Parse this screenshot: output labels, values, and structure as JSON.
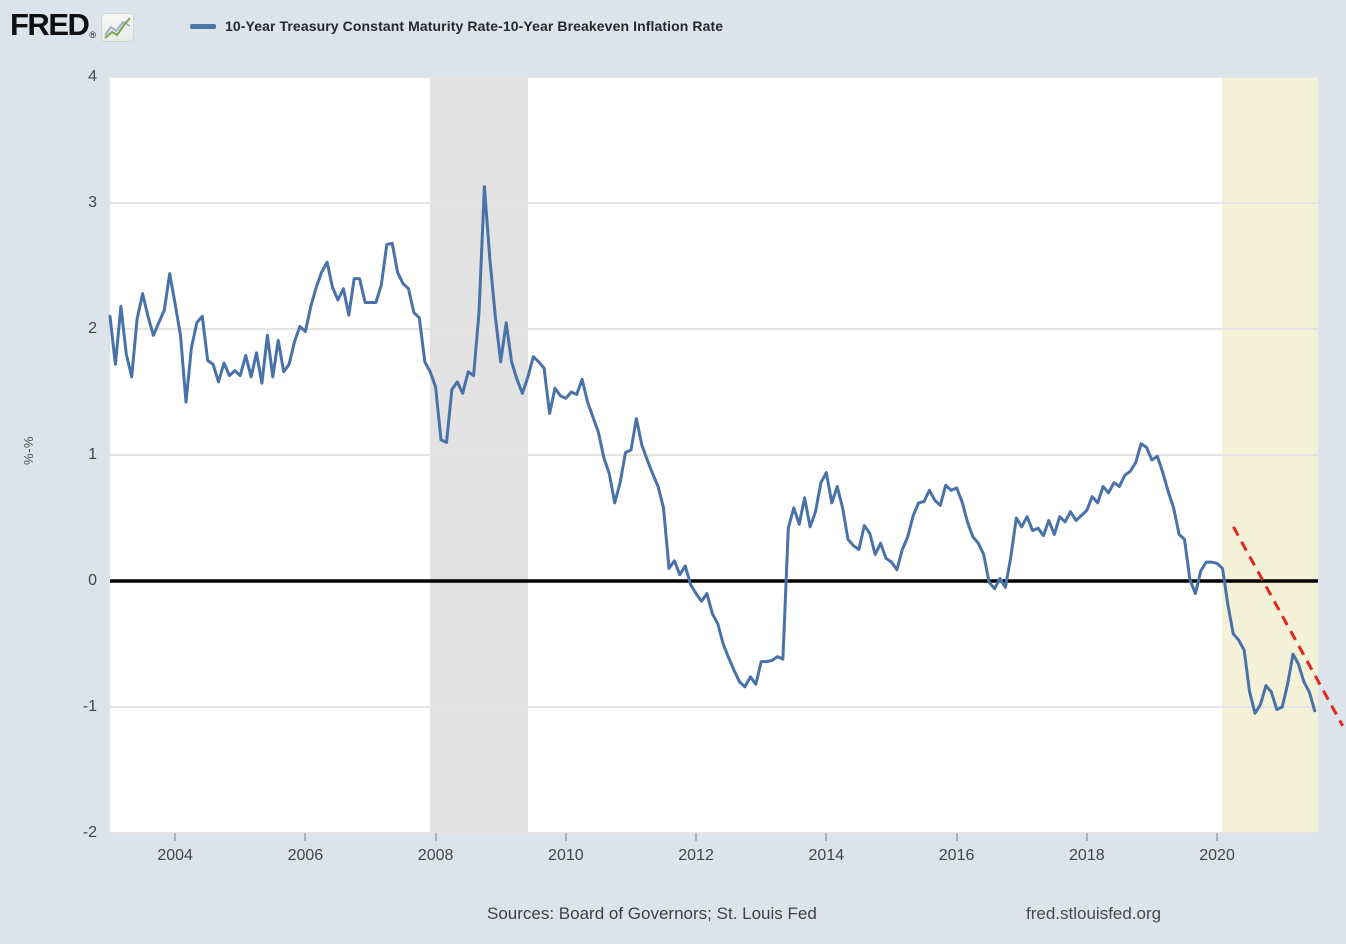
{
  "header": {
    "logo_text": "FRED",
    "logo_reg": "®"
  },
  "legend": {
    "label": "10-Year Treasury Constant Maturity Rate-10-Year Breakeven Inflation Rate",
    "marker_color": "#4b76a8"
  },
  "axes": {
    "y_unit": "%-%",
    "y_tick_labels": [
      "4",
      "3",
      "2",
      "1",
      "0",
      "-1",
      "-2"
    ],
    "x_tick_labels": [
      "2004",
      "2006",
      "2008",
      "2010",
      "2012",
      "2014",
      "2016",
      "2018",
      "2020"
    ]
  },
  "footer": {
    "sources": "Sources: Board of Governors; St. Louis Fed",
    "site": "fred.stlouisfed.org"
  },
  "colors": {
    "background": "#dce3eb",
    "plot_background": "#ffffff",
    "gridline": "#e4e4e4",
    "recession_band": "#e2e2e2",
    "highlight_band": "#f4f1d9",
    "series_line": "#4872a8",
    "zero_line": "#000000",
    "annotation_line": "#e0281e",
    "tick_text": "#454545"
  },
  "chart_data": {
    "type": "line",
    "title": "10-Year Treasury Constant Maturity Rate-10-Year Breakeven Inflation Rate",
    "ylabel": "%-%",
    "xlabel": "",
    "grid": "horizontal",
    "legend_position": "top-left",
    "xlim": [
      2003.0,
      2021.55
    ],
    "ylim": [
      -2,
      4
    ],
    "x_ticks": [
      2004,
      2006,
      2008,
      2010,
      2012,
      2014,
      2016,
      2018,
      2020
    ],
    "y_ticks": [
      4,
      3,
      2,
      1,
      0,
      -1,
      -2
    ],
    "frequency": "monthly",
    "x_start": 2003.0,
    "series": [
      {
        "name": "10-Year Treasury Constant Maturity Rate-10-Year Breakeven Inflation Rate",
        "color": "#4872a8",
        "values": [
          2.1,
          1.72,
          2.18,
          1.8,
          1.62,
          2.08,
          2.28,
          2.1,
          1.95,
          2.05,
          2.15,
          2.44,
          2.2,
          1.95,
          1.42,
          1.85,
          2.05,
          2.1,
          1.75,
          1.72,
          1.58,
          1.73,
          1.63,
          1.67,
          1.63,
          1.79,
          1.62,
          1.81,
          1.57,
          1.95,
          1.62,
          1.91,
          1.66,
          1.72,
          1.9,
          2.02,
          1.98,
          2.18,
          2.33,
          2.45,
          2.53,
          2.33,
          2.23,
          2.32,
          2.11,
          2.4,
          2.4,
          2.21,
          2.21,
          2.21,
          2.35,
          2.67,
          2.68,
          2.45,
          2.36,
          2.32,
          2.13,
          2.09,
          1.74,
          1.66,
          1.54,
          1.12,
          1.1,
          1.52,
          1.58,
          1.49,
          1.66,
          1.63,
          2.13,
          3.13,
          2.55,
          2.1,
          1.74,
          2.05,
          1.74,
          1.6,
          1.49,
          1.62,
          1.78,
          1.74,
          1.69,
          1.33,
          1.53,
          1.47,
          1.45,
          1.5,
          1.48,
          1.6,
          1.42,
          1.3,
          1.18,
          0.98,
          0.85,
          0.62,
          0.78,
          1.02,
          1.04,
          1.29,
          1.08,
          0.96,
          0.85,
          0.75,
          0.58,
          0.1,
          0.16,
          0.05,
          0.12,
          -0.03,
          -0.1,
          -0.16,
          -0.1,
          -0.26,
          -0.34,
          -0.5,
          -0.61,
          -0.71,
          -0.8,
          -0.84,
          -0.76,
          -0.82,
          -0.64,
          -0.64,
          -0.63,
          -0.6,
          -0.62,
          0.42,
          0.58,
          0.45,
          0.66,
          0.43,
          0.55,
          0.78,
          0.86,
          0.62,
          0.75,
          0.58,
          0.33,
          0.28,
          0.25,
          0.44,
          0.38,
          0.21,
          0.3,
          0.18,
          0.15,
          0.09,
          0.25,
          0.35,
          0.52,
          0.62,
          0.63,
          0.72,
          0.64,
          0.6,
          0.76,
          0.72,
          0.74,
          0.63,
          0.47,
          0.35,
          0.3,
          0.21,
          -0.01,
          -0.06,
          0.02,
          -0.05,
          0.19,
          0.5,
          0.43,
          0.51,
          0.4,
          0.42,
          0.36,
          0.48,
          0.37,
          0.51,
          0.47,
          0.55,
          0.48,
          0.52,
          0.56,
          0.67,
          0.62,
          0.75,
          0.7,
          0.78,
          0.75,
          0.84,
          0.87,
          0.94,
          1.09,
          1.06,
          0.96,
          0.99,
          0.86,
          0.71,
          0.58,
          0.37,
          0.33,
          0.01,
          -0.1,
          0.08,
          0.15,
          0.15,
          0.14,
          0.1,
          -0.19,
          -0.42,
          -0.47,
          -0.55,
          -0.88,
          -1.05,
          -0.98,
          -0.83,
          -0.88,
          -1.02,
          -1.0,
          -0.82,
          -0.58,
          -0.66,
          -0.8,
          -0.88,
          -1.03
        ]
      }
    ],
    "zero_line": {
      "y": 0,
      "color": "#000000"
    },
    "shaded_regions": [
      {
        "name": "recession-2008",
        "x1": 2007.92,
        "x2": 2009.42,
        "color": "#e2e2e2"
      },
      {
        "name": "highlight-2020",
        "x1": 2020.08,
        "x2": 2021.55,
        "color": "#f4f1d9"
      }
    ],
    "annotation_line": {
      "style": "dashed",
      "color": "#e0281e",
      "x1": 2020.25,
      "y1": 0.43,
      "x2": 2021.93,
      "y2": -1.15
    }
  }
}
